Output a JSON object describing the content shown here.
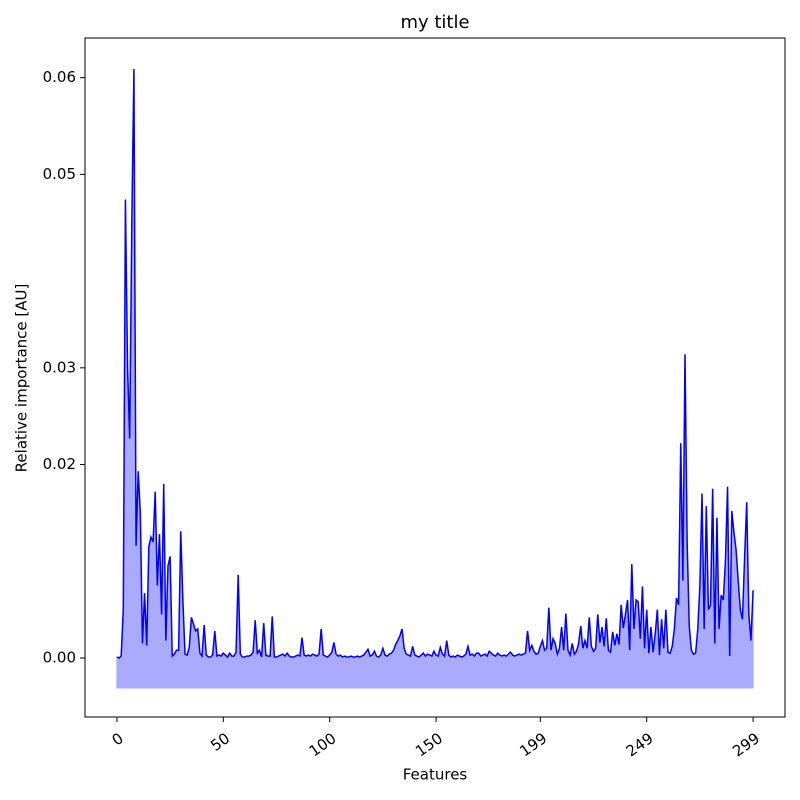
{
  "chart_data": {
    "type": "area_line",
    "title": "my title",
    "x_label": "Features",
    "y_label": "Relative importance [AU]",
    "line_color": "#0000ff",
    "fill_color": "#aaaaff",
    "fill_baseline": -0.0031,
    "xlim": [
      -15,
      314
    ],
    "xticks": [
      0,
      50,
      100,
      150,
      199,
      249,
      299
    ],
    "ylim": [
      -0.0061,
      0.0641
    ],
    "yticks": [
      {
        "value": 0,
        "label": "0.00"
      },
      0.02,
      0.03,
      0.05,
      0.06
    ],
    "values": [
      0.0001,
      0.0,
      0.0002,
      0.005,
      0.0474,
      0.03,
      0.0227,
      0.045,
      0.0609,
      0.0116,
      0.0193,
      0.015,
      0.0015,
      0.0067,
      0.0013,
      0.0115,
      0.0125,
      0.012,
      0.0172,
      0.0075,
      0.0128,
      0.0045,
      0.018,
      0.0018,
      0.0095,
      0.0105,
      0.0002,
      0.0004,
      0.0008,
      0.0008,
      0.0131,
      0.006,
      0.0004,
      0.0003,
      0.0011,
      0.0042,
      0.0035,
      0.0028,
      0.003,
      0.0005,
      0.0002,
      0.0034,
      0.0003,
      0.0001,
      0.0001,
      0.0003,
      0.0028,
      0.0002,
      0.0003,
      0.0002,
      0.0005,
      0.0003,
      0.0001,
      0.0005,
      0.0002,
      0.0002,
      0.0006,
      0.0086,
      0.0004,
      0.0001,
      0.0001,
      0.0002,
      0.0002,
      0.0003,
      0.0006,
      0.0039,
      0.0005,
      0.0008,
      0.0001,
      0.0036,
      0.0003,
      0.0002,
      0.0002,
      0.0043,
      0.0001,
      0.0001,
      0.0002,
      0.0003,
      0.0004,
      0.0002,
      0.0005,
      0.0002,
      0.0001,
      0.0001,
      0.0002,
      0.0003,
      0.0002,
      0.0021,
      0.0003,
      0.0002,
      0.0003,
      0.0002,
      0.0004,
      0.0003,
      0.0002,
      0.0004,
      0.003,
      0.0003,
      0.0002,
      0.0001,
      0.0003,
      0.0006,
      0.0016,
      0.0004,
      0.0002,
      0.0003,
      0.0001,
      0.0002,
      0.0001,
      0.0001,
      0.0002,
      0.0001,
      0.0001,
      0.0002,
      0.0001,
      0.0002,
      0.0003,
      0.0006,
      0.0009,
      0.0002,
      0.0003,
      0.0007,
      0.0002,
      0.0001,
      0.0003,
      0.001,
      0.0003,
      0.0002,
      0.0004,
      0.0005,
      0.0008,
      0.0014,
      0.0018,
      0.0023,
      0.003,
      0.001,
      0.0004,
      0.0003,
      0.0002,
      0.0012,
      0.0003,
      0.0002,
      0.0001,
      0.0003,
      0.0005,
      0.0002,
      0.0004,
      0.0003,
      0.0002,
      0.0007,
      0.0003,
      0.0002,
      0.0011,
      0.0004,
      0.0002,
      0.0018,
      0.0003,
      0.0001,
      0.0002,
      0.0001,
      0.0003,
      0.0002,
      0.0001,
      0.0002,
      0.0004,
      0.0012,
      0.0003,
      0.0004,
      0.0002,
      0.0005,
      0.0005,
      0.0002,
      0.0003,
      0.0004,
      0.0002,
      0.0007,
      0.0005,
      0.0003,
      0.0002,
      0.0005,
      0.0003,
      0.0002,
      0.0003,
      0.0002,
      0.0004,
      0.0006,
      0.0003,
      0.0002,
      0.0003,
      0.0004,
      0.0003,
      0.0004,
      0.0005,
      0.0028,
      0.0008,
      0.0013,
      0.0007,
      0.0004,
      0.0005,
      0.0012,
      0.0018,
      0.0008,
      0.001,
      0.0052,
      0.0008,
      0.002,
      0.0015,
      0.0004,
      0.001,
      0.0032,
      0.0008,
      0.0046,
      0.0008,
      0.0003,
      0.0015,
      0.0004,
      0.0007,
      0.0015,
      0.0033,
      0.001,
      0.0018,
      0.001,
      0.0042,
      0.0012,
      0.0007,
      0.001,
      0.0045,
      0.0016,
      0.0032,
      0.0012,
      0.0041,
      0.0008,
      0.0006,
      0.0027,
      0.0013,
      0.0025,
      0.0014,
      0.0055,
      0.0031,
      0.0045,
      0.006,
      0.0008,
      0.0097,
      0.003,
      0.006,
      0.0058,
      0.002,
      0.0074,
      0.001,
      0.005,
      0.0005,
      0.0032,
      0.0006,
      0.0025,
      0.005,
      0.0003,
      0.004,
      0.001,
      0.005,
      0.0006,
      0.0005,
      0.0012,
      0.003,
      0.0062,
      0.0055,
      0.0222,
      0.008,
      0.0314,
      0.012,
      0.0033,
      0.0008,
      0.0004,
      0.0005,
      0.003,
      0.0075,
      0.017,
      0.003,
      0.0157,
      0.005,
      0.0055,
      0.0175,
      0.0015,
      0.0145,
      0.003,
      0.0065,
      0.006,
      0.01,
      0.0177,
      0.0002,
      0.0152,
      0.013,
      0.0112,
      0.008,
      0.005,
      0.004,
      0.0103,
      0.0161,
      0.0045,
      0.0018,
      0.007
    ]
  }
}
